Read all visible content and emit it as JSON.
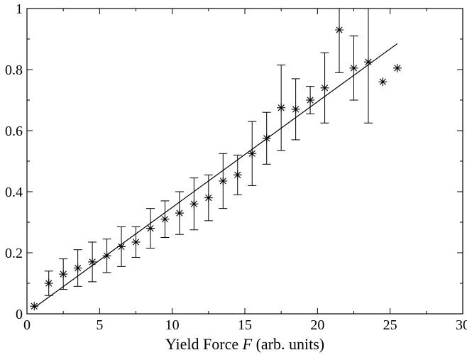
{
  "chart_data": {
    "type": "scatter",
    "title": "",
    "xlabel": {
      "prefix": "Yield Force ",
      "symbol": "F",
      "suffix": " (arb. units)"
    },
    "ylabel": "",
    "xlim": [
      0,
      30
    ],
    "ylim": [
      0,
      1
    ],
    "x_ticks": [
      0,
      5,
      10,
      15,
      20,
      25,
      30
    ],
    "x_tick_labels": [
      "0",
      "5",
      "10",
      "15",
      "20",
      "25",
      "30"
    ],
    "y_ticks": [
      0,
      0.2,
      0.4,
      0.6,
      0.8,
      1
    ],
    "y_tick_labels": [
      "0",
      "0.2",
      "0.4",
      "0.6",
      "0.8",
      "1"
    ],
    "grid": false,
    "marker": "asterisk",
    "series": [
      {
        "x": [
          0.5,
          1.5,
          2.5,
          3.5,
          4.5,
          5.5,
          6.5,
          7.5,
          8.5,
          9.5,
          10.5,
          11.5,
          12.5,
          13.5,
          14.5,
          15.5,
          16.5,
          17.5,
          18.5,
          19.5,
          20.5,
          21.5,
          22.5,
          23.5,
          24.5,
          25.5
        ],
        "y": [
          0.025,
          0.1,
          0.13,
          0.15,
          0.17,
          0.19,
          0.22,
          0.235,
          0.28,
          0.31,
          0.33,
          0.36,
          0.38,
          0.435,
          0.455,
          0.525,
          0.575,
          0.675,
          0.67,
          0.7,
          0.74,
          0.93,
          0.805,
          0.825,
          0.76,
          0.805
        ],
        "y_error": [
          0,
          0.04,
          0.05,
          0.06,
          0.065,
          0.055,
          0.065,
          0.05,
          0.065,
          0.06,
          0.07,
          0.085,
          0.075,
          0.09,
          0.065,
          0.105,
          0.085,
          0.14,
          0.1,
          0.045,
          0.115,
          0.14,
          0.105,
          0.2,
          0,
          0
        ]
      }
    ],
    "fit_line": {
      "x": [
        0.5,
        25.5
      ],
      "y": [
        0.02,
        0.885
      ]
    },
    "colors": {
      "ink": "#000000",
      "background": "#ffffff"
    }
  }
}
